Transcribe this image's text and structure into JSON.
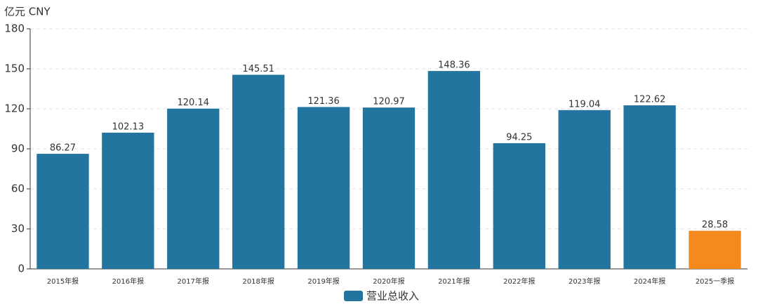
{
  "chart_data": {
    "type": "bar",
    "unit_label": "亿元  CNY",
    "categories": [
      "2015年报",
      "2016年报",
      "2017年报",
      "2018年报",
      "2019年报",
      "2020年报",
      "2021年报",
      "2022年报",
      "2023年报",
      "2024年报",
      "2025一季报"
    ],
    "series": [
      {
        "name": "营业总收入",
        "color": "#21759f",
        "values": [
          86.27,
          102.13,
          120.14,
          145.51,
          121.36,
          120.97,
          148.36,
          94.25,
          119.04,
          122.62,
          28.58
        ]
      }
    ],
    "bar_colors": [
      "#21759f",
      "#21759f",
      "#21759f",
      "#21759f",
      "#21759f",
      "#21759f",
      "#21759f",
      "#21759f",
      "#21759f",
      "#21759f",
      "#f48a1d"
    ],
    "ylim": [
      0,
      180
    ],
    "yticks": [
      0,
      30,
      60,
      90,
      120,
      150,
      180
    ],
    "grid": true,
    "legend": "bottom"
  }
}
